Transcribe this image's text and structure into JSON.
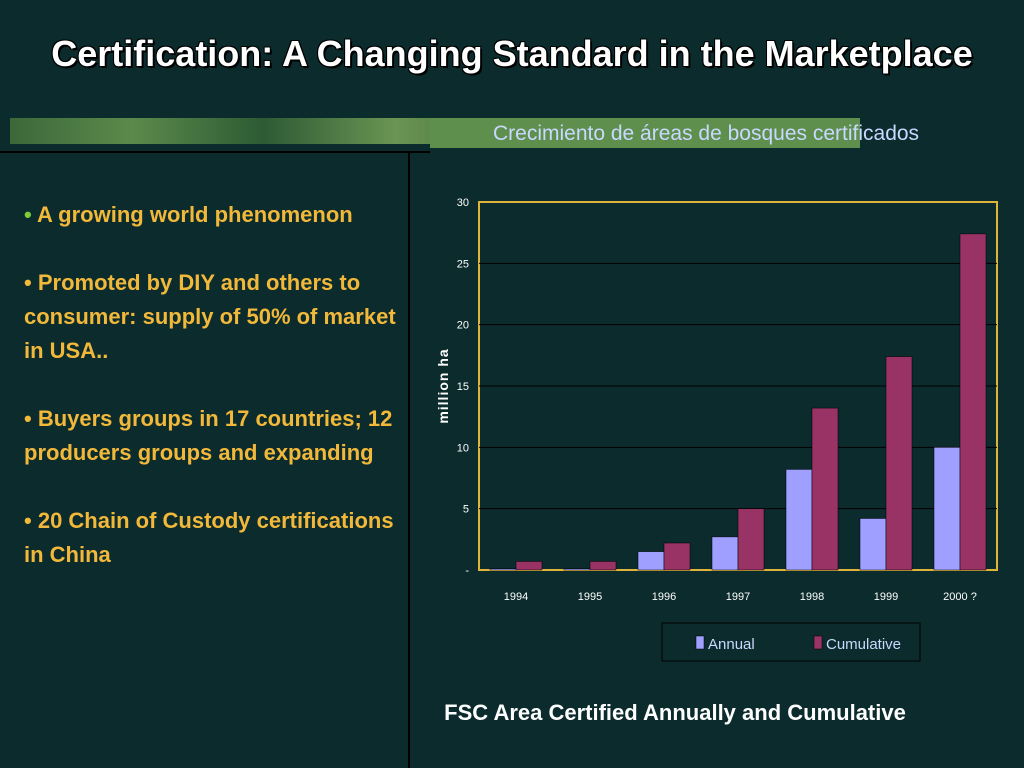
{
  "slide": {
    "title": "Certification: A Changing Standard in the Marketplace",
    "bullets": [
      "A growing world phenomenon",
      "Promoted by DIY and others to consumer: supply of 50% of market in USA..",
      "Buyers groups in 17 countries; 12 producers groups and expanding",
      "20 Chain of Custody certifications in China"
    ],
    "caption": "FSC Area Certified Annually and Cumulative"
  },
  "chart_data": {
    "type": "bar",
    "title": "Crecimiento de áreas de bosques certificados",
    "ylabel": "million ha",
    "xlabel": "",
    "categories": [
      "1994",
      "1995",
      "1996",
      "1997",
      "1998",
      "1999",
      "2000 ?"
    ],
    "series": [
      {
        "name": "Annual",
        "color": "#9f9fff",
        "values": [
          0.1,
          0.1,
          1.5,
          2.7,
          8.2,
          4.2,
          10.0
        ]
      },
      {
        "name": "Cumulative",
        "color": "#993366",
        "values": [
          0.7,
          0.7,
          2.2,
          5.0,
          13.2,
          17.4,
          27.4
        ]
      }
    ],
    "ylim": [
      0,
      30
    ],
    "yticks": [
      "-",
      "5",
      "10",
      "15",
      "20",
      "25",
      "30"
    ],
    "grid": true,
    "legend": "bottom-right"
  }
}
